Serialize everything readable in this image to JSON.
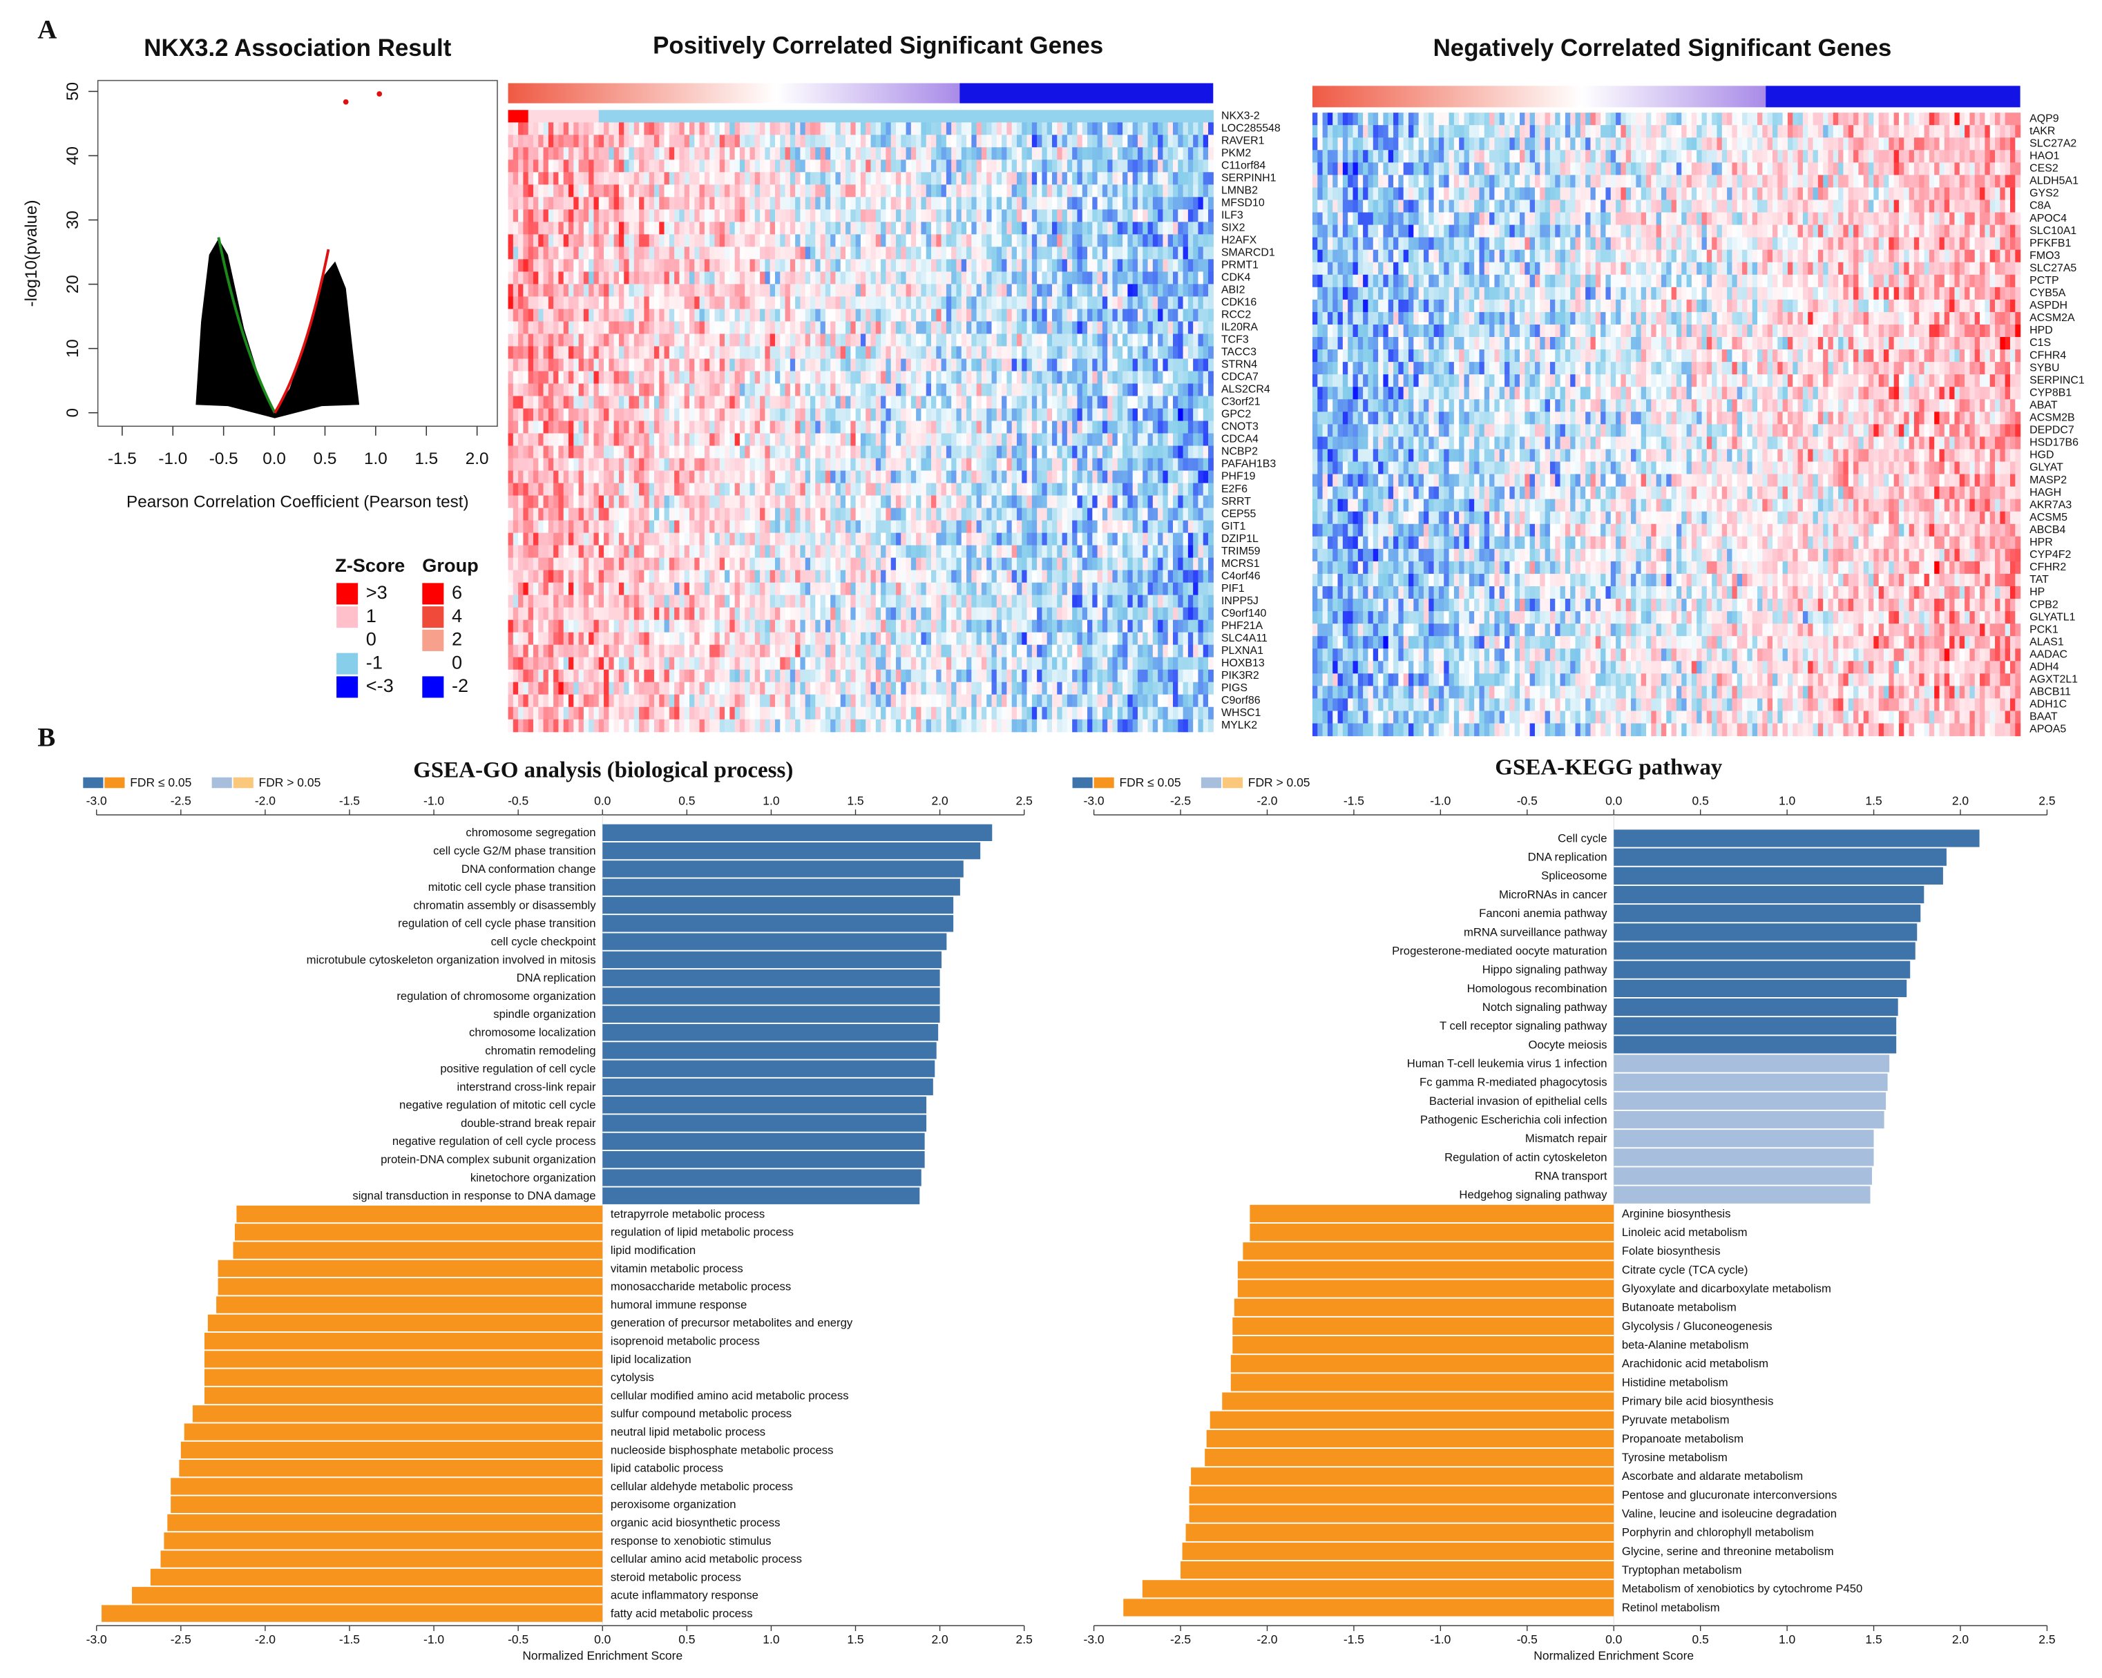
{
  "panel_labels": [
    "A",
    "B"
  ],
  "volcano": {
    "type": "scatter",
    "title": "NKX3.2 Association Result",
    "x_label": "Pearson Correlation Coefficient (Pearson test)",
    "y_label": "-log10(pvalue)",
    "xlim": [
      -1.74,
      2.2
    ],
    "xticks": [
      -1.5,
      {
        "value": -1,
        "label": "-1.0"
      },
      -0.5,
      {
        "value": 0,
        "label": "0.0"
      },
      0.5,
      {
        "value": 1,
        "label": "1.0"
      },
      1.5,
      {
        "value": 2,
        "label": "2.0"
      }
    ],
    "ylim": [
      -2.1,
      51.7
    ],
    "yticks": [
      0,
      10,
      20,
      30,
      40,
      50
    ]
  },
  "heatmaps": [
    {
      "title": "Positively Correlated Significant Genes",
      "genes": [
        "NKX3-2",
        "LOC285548",
        "RAVER1",
        "PKM2",
        "C11orf84",
        "SERPINH1",
        "LMNB2",
        "MFSD10",
        "ILF3",
        "SIX2",
        "H2AFX",
        "SMARCD1",
        "PRMT1",
        "CDK4",
        "ABI2",
        "CDK16",
        "RCC2",
        "IL20RA",
        "TCF3",
        "TACC3",
        "STRN4",
        "CDCA7",
        "ALS2CR4",
        "C3orf21",
        "GPC2",
        "CNOT3",
        "CDCA4",
        "NCBP2",
        "PAFAH1B3",
        "PHF19",
        "E2F6",
        "SRRT",
        "CEP55",
        "GIT1",
        "DZIP1L",
        "TRIM59",
        "MCRS1",
        "C4orf46",
        "PIF1",
        "INPP5J",
        "C9orf140",
        "PHF21A",
        "SLC4A11",
        "PLXNA1",
        "HOXB13",
        "PIK3R2",
        "PIGS",
        "C9orf86",
        "WHSC1",
        "MYLK2"
      ]
    },
    {
      "title": "Negatively Correlated Significant Genes",
      "genes": [
        "AQP9",
        "tAKR",
        "SLC27A2",
        "HAO1",
        "CES2",
        "ALDH5A1",
        "GYS2",
        "C8A",
        "APOC4",
        "SLC10A1",
        "PFKFB1",
        "FMO3",
        "SLC27A5",
        "PCTP",
        "CYB5A",
        "ASPDH",
        "ACSM2A",
        "HPD",
        "C1S",
        "CFHR4",
        "SYBU",
        "SERPINC1",
        "CYP8B1",
        "ABAT",
        "ACSM2B",
        "DEPDC7",
        "HSD17B6",
        "HGD",
        "GLYAT",
        "MASP2",
        "HAGH",
        "AKR7A3",
        "ACSM5",
        "ABCB4",
        "HPR",
        "CYP4F2",
        "CFHR2",
        "TAT",
        "HP",
        "CPB2",
        "GLYATL1",
        "PCK1",
        "ALAS1",
        "AADAC",
        "ADH4",
        "AGXT2L1",
        "ABCB11",
        "ADH1C",
        "BAAT",
        "APOA5"
      ]
    }
  ],
  "legend": {
    "zscore": {
      "title": "Z-Score",
      "labels": [
        ">3",
        "1",
        "0",
        "-1",
        "<-3"
      ],
      "colors": [
        "#ff0000",
        "#ffc0cb",
        "#ffffff",
        "#87ceeb",
        "#0000ff"
      ]
    },
    "group": {
      "title": "Group",
      "labels": [
        "6",
        "4",
        "2",
        "0",
        "-2"
      ],
      "colors": [
        "#ff0000",
        "#f04a3a",
        "#f7a08c",
        "#ffffff",
        "#0000ff"
      ]
    }
  },
  "chart_data": [
    {
      "type": "bar",
      "title": "GSEA-GO analysis (biological process)",
      "x_label": "Normalized Enrichment Score",
      "legend": [
        {
          "label": "FDR ≤ 0.05",
          "colors": [
            "#3e74a9",
            "#f7941d"
          ]
        },
        {
          "label": "FDR > 0.05",
          "colors": [
            "#a7bfdc",
            "#fbc77a"
          ]
        }
      ],
      "xlim": [
        -3,
        2.5
      ],
      "xticks": [
        {
          "value": -3,
          "label": "-3.0"
        },
        -2.5,
        {
          "value": -2,
          "label": "-2.0"
        },
        -1.5,
        {
          "value": -1,
          "label": "-1.0"
        },
        -0.5,
        {
          "value": 0,
          "label": "0.0"
        },
        0.5,
        {
          "value": 1,
          "label": "1.0"
        },
        1.5,
        {
          "value": 2,
          "label": "2.0"
        },
        2.5
      ],
      "categories": [
        "chromosome segregation",
        "cell cycle G2/M phase transition",
        "DNA conformation change",
        "mitotic cell cycle phase transition",
        "chromatin assembly or disassembly",
        "regulation of cell cycle phase transition",
        "cell cycle checkpoint",
        "microtubule cytoskeleton organization involved in mitosis",
        "DNA replication",
        "regulation of chromosome organization",
        "spindle organization",
        "chromosome localization",
        "chromatin remodeling",
        "positive regulation of cell cycle",
        "interstrand cross-link repair",
        "negative regulation of mitotic cell cycle",
        "double-strand break repair",
        "negative regulation of cell cycle process",
        "protein-DNA complex subunit organization",
        "kinetochore organization",
        "signal transduction in response to DNA damage",
        "tetrapyrrole metabolic process",
        "regulation of lipid metabolic process",
        "lipid modification",
        "vitamin metabolic process",
        "monosaccharide metabolic process",
        "humoral immune response",
        "generation of precursor metabolites and energy",
        "isoprenoid metabolic process",
        "lipid localization",
        "cytolysis",
        "cellular modified amino acid metabolic process",
        "sulfur compound metabolic process",
        "neutral lipid metabolic process",
        "nucleoside bisphosphate metabolic process",
        "lipid catabolic process",
        "cellular aldehyde metabolic process",
        "peroxisome organization",
        "organic acid biosynthetic process",
        "response to xenobiotic stimulus",
        "cellular amino acid metabolic process",
        "steroid metabolic process",
        "acute inflammatory response",
        "fatty acid metabolic process"
      ],
      "values": [
        2.31,
        2.24,
        2.14,
        2.12,
        2.08,
        2.08,
        2.04,
        2.01,
        2.0,
        2.0,
        2.0,
        1.99,
        1.98,
        1.97,
        1.96,
        1.92,
        1.92,
        1.91,
        1.91,
        1.89,
        1.88,
        -2.17,
        -2.18,
        -2.19,
        -2.28,
        -2.28,
        -2.29,
        -2.34,
        -2.36,
        -2.36,
        -2.36,
        -2.36,
        -2.43,
        -2.48,
        -2.5,
        -2.51,
        -2.56,
        -2.56,
        -2.58,
        -2.6,
        -2.62,
        -2.68,
        -2.79,
        -2.97
      ],
      "colors": [
        "#3e74a9",
        "#3e74a9",
        "#3e74a9",
        "#3e74a9",
        "#3e74a9",
        "#3e74a9",
        "#3e74a9",
        "#3e74a9",
        "#3e74a9",
        "#3e74a9",
        "#3e74a9",
        "#3e74a9",
        "#3e74a9",
        "#3e74a9",
        "#3e74a9",
        "#3e74a9",
        "#3e74a9",
        "#3e74a9",
        "#3e74a9",
        "#3e74a9",
        "#3e74a9",
        "#f7941d",
        "#f7941d",
        "#f7941d",
        "#f7941d",
        "#f7941d",
        "#f7941d",
        "#f7941d",
        "#f7941d",
        "#f7941d",
        "#f7941d",
        "#f7941d",
        "#f7941d",
        "#f7941d",
        "#f7941d",
        "#f7941d",
        "#f7941d",
        "#f7941d",
        "#f7941d",
        "#f7941d",
        "#f7941d",
        "#f7941d",
        "#f7941d",
        "#f7941d"
      ]
    },
    {
      "type": "bar",
      "title": "GSEA-KEGG pathway",
      "x_label": "Normalized Enrichment Score",
      "legend": [
        {
          "label": "FDR ≤ 0.05",
          "colors": [
            "#3e74a9",
            "#f7941d"
          ]
        },
        {
          "label": "FDR > 0.05",
          "colors": [
            "#a7bfdc",
            "#fbc77a"
          ]
        }
      ],
      "xlim": [
        -3,
        2.5
      ],
      "xticks": [
        {
          "value": -3,
          "label": "-3.0"
        },
        -2.5,
        {
          "value": -2,
          "label": "-2.0"
        },
        -1.5,
        {
          "value": -1,
          "label": "-1.0"
        },
        -0.5,
        {
          "value": 0,
          "label": "0.0"
        },
        0.5,
        {
          "value": 1,
          "label": "1.0"
        },
        1.5,
        {
          "value": 2,
          "label": "2.0"
        },
        2.5
      ],
      "categories": [
        "Cell cycle",
        "DNA replication",
        "Spliceosome",
        "MicroRNAs in cancer",
        "Fanconi anemia pathway",
        "mRNA surveillance pathway",
        "Progesterone-mediated oocyte maturation",
        "Hippo signaling pathway",
        "Homologous recombination",
        "Notch signaling pathway",
        "T cell receptor signaling pathway",
        "Oocyte meiosis",
        "Human T-cell leukemia virus 1 infection",
        "Fc gamma R-mediated phagocytosis",
        "Bacterial invasion of epithelial cells",
        "Pathogenic Escherichia coli infection",
        "Mismatch repair",
        "Regulation of actin cytoskeleton",
        "RNA transport",
        "Hedgehog signaling pathway",
        "Arginine biosynthesis",
        "Linoleic acid metabolism",
        "Folate biosynthesis",
        "Citrate cycle (TCA cycle)",
        "Glyoxylate and dicarboxylate metabolism",
        "Butanoate metabolism",
        "Glycolysis / Gluconeogenesis",
        "beta-Alanine metabolism",
        "Arachidonic acid metabolism",
        "Histidine metabolism",
        "Primary bile acid biosynthesis",
        "Pyruvate metabolism",
        "Propanoate metabolism",
        "Tyrosine metabolism",
        "Ascorbate and aldarate metabolism",
        "Pentose and glucuronate interconversions",
        "Valine, leucine and isoleucine degradation",
        "Porphyrin and chlorophyll metabolism",
        "Glycine, serine and threonine metabolism",
        "Tryptophan metabolism",
        "Metabolism of xenobiotics by cytochrome P450",
        "Retinol metabolism"
      ],
      "values": [
        2.11,
        1.92,
        1.9,
        1.79,
        1.77,
        1.75,
        1.74,
        1.71,
        1.69,
        1.64,
        1.63,
        1.63,
        1.59,
        1.58,
        1.57,
        1.56,
        1.5,
        1.5,
        1.49,
        1.48,
        -2.1,
        -2.1,
        -2.14,
        -2.17,
        -2.17,
        -2.19,
        -2.2,
        -2.2,
        -2.21,
        -2.21,
        -2.26,
        -2.33,
        -2.35,
        -2.36,
        -2.44,
        -2.45,
        -2.45,
        -2.47,
        -2.49,
        -2.5,
        -2.72,
        -2.83
      ],
      "colors": [
        "#3e74a9",
        "#3e74a9",
        "#3e74a9",
        "#3e74a9",
        "#3e74a9",
        "#3e74a9",
        "#3e74a9",
        "#3e74a9",
        "#3e74a9",
        "#3e74a9",
        "#3e74a9",
        "#3e74a9",
        "#a7bfdc",
        "#a7bfdc",
        "#a7bfdc",
        "#a7bfdc",
        "#a7bfdc",
        "#a7bfdc",
        "#a7bfdc",
        "#a7bfdc",
        "#f7941d",
        "#f7941d",
        "#f7941d",
        "#f7941d",
        "#f7941d",
        "#f7941d",
        "#f7941d",
        "#f7941d",
        "#f7941d",
        "#f7941d",
        "#f7941d",
        "#f7941d",
        "#f7941d",
        "#f7941d",
        "#f7941d",
        "#f7941d",
        "#f7941d",
        "#f7941d",
        "#f7941d",
        "#f7941d",
        "#f7941d",
        "#f7941d"
      ]
    }
  ]
}
